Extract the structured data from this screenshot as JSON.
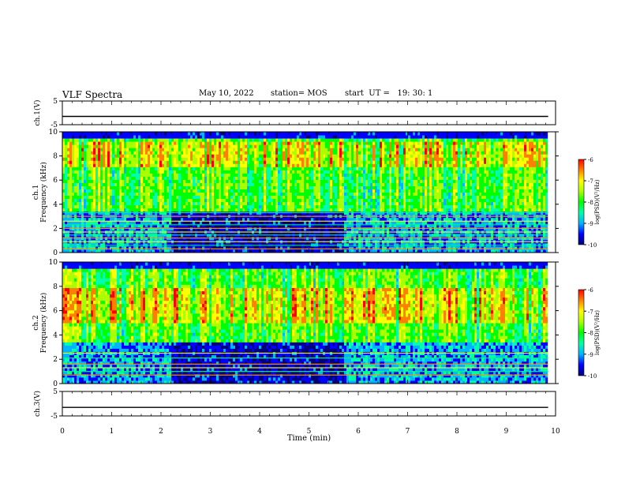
{
  "header": {
    "title": "VLF Spectra",
    "date": "May 10, 2022",
    "station": "station= MOS",
    "start_ut": "start  UT =   19: 30: 1"
  },
  "chart_data": [
    {
      "type": "line",
      "panel": "ch1-voltage",
      "ylabel": "ch.1(V)",
      "ylim": [
        -5,
        5
      ],
      "y_ticks": [
        "5",
        "-5"
      ],
      "xlim": [
        0,
        10
      ],
      "series": [
        {
          "x": [
            0,
            9.85
          ],
          "values": [
            -1.5,
            -1.5
          ]
        }
      ]
    },
    {
      "type": "heatmap",
      "panel": "ch1-spectrogram",
      "ylabel_line1": "ch.1",
      "ylabel_line2": "Frequency (kHz)",
      "ylim": [
        0,
        10
      ],
      "y_ticks": [
        "0",
        "2",
        "4",
        "6",
        "8",
        "10"
      ],
      "xlim": [
        0,
        10
      ],
      "data_end_min": 9.85,
      "intense_band_khz": [
        7,
        9.3
      ],
      "tone_lines_khz": [
        0.3,
        0.6,
        0.9,
        1.2,
        1.45,
        1.7,
        2.0,
        2.3,
        2.6,
        3.0,
        3.3
      ],
      "colorbar": {
        "label": "log(PSD)(V²/Hz)",
        "ticks": [
          "-6",
          "-7",
          "-8",
          "-9",
          "-10"
        ],
        "range": [
          -10,
          -6
        ]
      }
    },
    {
      "type": "heatmap",
      "panel": "ch2-spectrogram",
      "ylabel_line1": "ch.2",
      "ylabel_line2": "Frequency (kHz)",
      "ylim": [
        0,
        10
      ],
      "y_ticks": [
        "0",
        "2",
        "4",
        "6",
        "8",
        "10"
      ],
      "xlim": [
        0,
        10
      ],
      "data_end_min": 9.85,
      "intense_band_khz": [
        5,
        8
      ],
      "tone_lines_khz": [
        0.7,
        1.0,
        1.3,
        1.6,
        2.1,
        2.5
      ],
      "colorbar": {
        "label": "log(PSD)(V²/Hz)",
        "ticks": [
          "-6",
          "-7",
          "-8",
          "-9",
          "-10"
        ],
        "range": [
          -10,
          -6
        ]
      }
    },
    {
      "type": "line",
      "panel": "ch3-voltage",
      "ylabel": "ch.3(V)",
      "ylim": [
        -5,
        5
      ],
      "y_ticks": [
        "5",
        "-5"
      ],
      "xlim": [
        0,
        10
      ],
      "series": [
        {
          "x": [
            0,
            9.85
          ],
          "values": [
            -1.5,
            -1.5
          ]
        }
      ]
    }
  ],
  "x_axis": {
    "label": "Time (min)",
    "ticks": [
      "0",
      "1",
      "2",
      "3",
      "4",
      "5",
      "6",
      "7",
      "8",
      "9",
      "10"
    ]
  },
  "colors": {
    "colormap": [
      "#00007a",
      "#0000ff",
      "#00b4ff",
      "#00ffaa",
      "#00ff00",
      "#aaff00",
      "#ffff00",
      "#ff8000",
      "#ff0000",
      "#ffffff"
    ]
  }
}
